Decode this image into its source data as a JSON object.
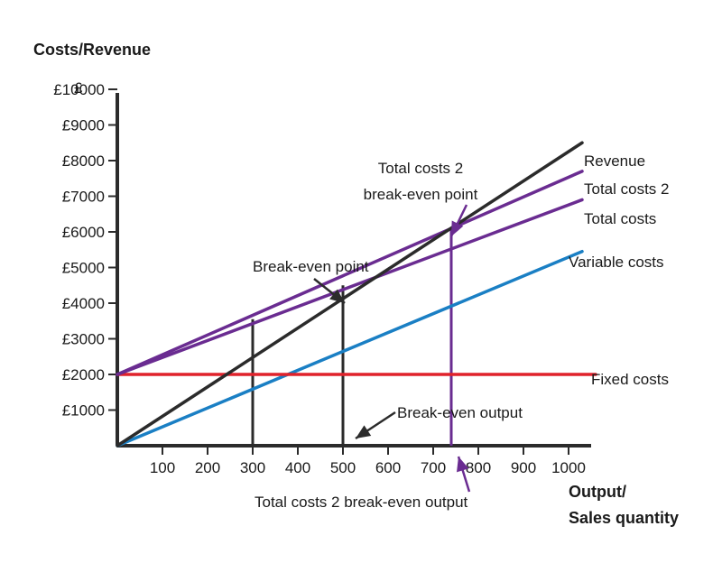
{
  "chart_data": {
    "type": "line",
    "ylabel": "Costs/Revenue",
    "yunit": "£",
    "xlabel_line1": "Output/",
    "xlabel_line2": "Sales quantity",
    "x_ticks": [
      100,
      200,
      300,
      400,
      500,
      600,
      700,
      800,
      900,
      1000
    ],
    "y_ticks": [
      {
        "value": 1000,
        "label": "£1000"
      },
      {
        "value": 2000,
        "label": "£2000"
      },
      {
        "value": 3000,
        "label": "£3000"
      },
      {
        "value": 4000,
        "label": "£4000"
      },
      {
        "value": 5000,
        "label": "£5000"
      },
      {
        "value": 6000,
        "label": "£6000"
      },
      {
        "value": 7000,
        "label": "£7000"
      },
      {
        "value": 8000,
        "label": "£8000"
      },
      {
        "value": 9000,
        "label": "£9000"
      },
      {
        "value": 10000,
        "label": "£10000"
      }
    ],
    "xlim": [
      0,
      1050
    ],
    "ylim": [
      0,
      10500
    ],
    "series": [
      {
        "name": "Revenue",
        "color": "#2b2b2b",
        "x": [
          0,
          1030
        ],
        "y": [
          0,
          8500
        ]
      },
      {
        "name": "Total costs 2",
        "color": "#6a2c91",
        "x": [
          0,
          1030
        ],
        "y": [
          2000,
          7700
        ]
      },
      {
        "name": "Total costs",
        "color": "#6a2c91",
        "x": [
          0,
          1030
        ],
        "y": [
          2000,
          6900
        ]
      },
      {
        "name": "Variable costs",
        "color": "#1a7fc4",
        "x": [
          0,
          1030
        ],
        "y": [
          0,
          5450
        ]
      },
      {
        "name": "Fixed costs",
        "color": "#e0222b",
        "x": [
          0,
          1060
        ],
        "y": [
          2000,
          2000
        ]
      }
    ],
    "drop_lines": [
      {
        "x": 300,
        "y_top": 3550,
        "color": "#2b2b2b"
      },
      {
        "x": 500,
        "y_top": 4500,
        "color": "#2b2b2b"
      },
      {
        "x": 740,
        "y_top": 6100,
        "color": "#6a2c91"
      }
    ],
    "annotations": [
      {
        "key": "bep",
        "lines": [
          "Break-even point"
        ],
        "color": "#2b2b2b"
      },
      {
        "key": "tc2bep",
        "lines": [
          "Total costs 2",
          "break-even point"
        ],
        "color": "#6a2c91"
      },
      {
        "key": "beo",
        "lines": [
          "Break-even output"
        ],
        "color": "#2b2b2b"
      },
      {
        "key": "tc2beo",
        "lines": [
          "Total costs 2 break-even output"
        ],
        "color": "#6a2c91"
      }
    ]
  }
}
